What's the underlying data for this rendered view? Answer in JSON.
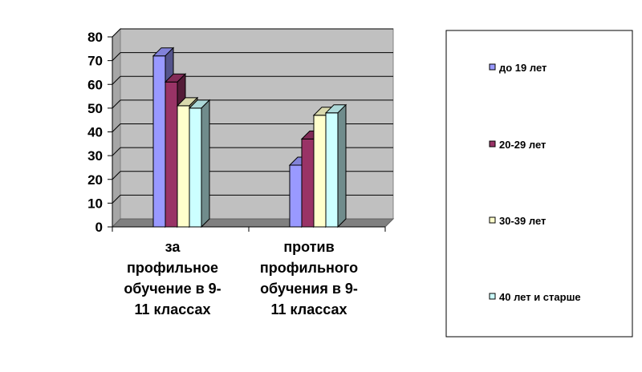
{
  "chart_data": {
    "type": "bar",
    "categories": [
      "за профильное обучение в 9-11 классах",
      "против профильного обучения в 9-11 классах"
    ],
    "category_lines": [
      [
        "за",
        "профильное",
        "обучение в 9-",
        "11 классах"
      ],
      [
        "против",
        "профильного",
        "обучения в 9-",
        "11 классах"
      ]
    ],
    "series": [
      {
        "name": "до 19 лет",
        "values": [
          72,
          26
        ]
      },
      {
        "name": "20-29 лет",
        "values": [
          61,
          37
        ]
      },
      {
        "name": "30-39 лет",
        "values": [
          51,
          47
        ]
      },
      {
        "name": "40 лет и старше",
        "values": [
          50,
          48
        ]
      }
    ],
    "ylim": [
      0,
      80
    ],
    "yticks": [
      "0",
      "10",
      "20",
      "30",
      "40",
      "50",
      "60",
      "70",
      "80"
    ],
    "grid": true,
    "three_d": true,
    "legend_position": "right",
    "colors": {
      "series": [
        "#9999ff",
        "#993366",
        "#ffffcc",
        "#ccffff"
      ],
      "wall": "#c0c0c0",
      "floor": "#808080"
    }
  }
}
